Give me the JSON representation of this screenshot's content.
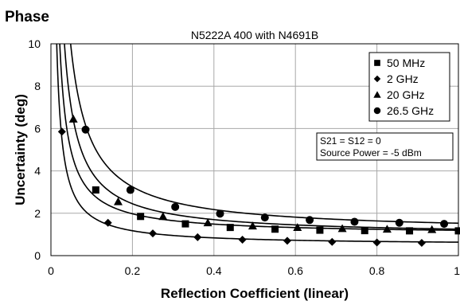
{
  "chart_data": {
    "type": "scatter",
    "heading": "Phase",
    "title": "N5222A 400 with N4691B",
    "xlabel": "Reflection Coefficient (linear)",
    "ylabel": "Uncertainty (deg)",
    "xlim": [
      0,
      1
    ],
    "ylim": [
      0,
      10
    ],
    "xticks": [
      0,
      0.2,
      0.4,
      0.6,
      0.8,
      1
    ],
    "xtick_labels": [
      "0",
      "0.2",
      "0.4",
      "0.6",
      "0.8",
      "1"
    ],
    "yticks": [
      0,
      2,
      4,
      6,
      8,
      10
    ],
    "ytick_labels": [
      "0",
      "2",
      "4",
      "6",
      "8",
      "10"
    ],
    "grid": true,
    "legend_position": "top-right",
    "annotation": [
      "S21 = S12 = 0",
      "Source Power = -5 dBm"
    ],
    "series": [
      {
        "name": "50 MHz",
        "marker": "square",
        "x": [
          0.11,
          0.22,
          0.33,
          0.44,
          0.55,
          0.66,
          0.77,
          0.88,
          1.0
        ],
        "y": [
          3.1,
          1.85,
          1.5,
          1.33,
          1.25,
          1.2,
          1.18,
          1.17,
          1.17
        ],
        "curve_a": 0.195,
        "curve_b": 1.0
      },
      {
        "name": "2 GHz",
        "marker": "diamond",
        "x": [
          0.027,
          0.14,
          0.25,
          0.36,
          0.47,
          0.58,
          0.69,
          0.8,
          0.91
        ],
        "y": [
          5.85,
          1.55,
          1.05,
          0.87,
          0.75,
          0.7,
          0.65,
          0.62,
          0.6
        ],
        "curve_a": 0.135,
        "curve_b": 0.5
      },
      {
        "name": "20 GHz",
        "marker": "triangle",
        "x": [
          0.055,
          0.165,
          0.275,
          0.385,
          0.495,
          0.605,
          0.715,
          0.825,
          0.935
        ],
        "y": [
          6.45,
          2.55,
          1.85,
          1.55,
          1.4,
          1.33,
          1.28,
          1.25,
          1.23
        ],
        "curve_a": 0.3,
        "curve_b": 0.95
      },
      {
        "name": "26.5 GHz",
        "marker": "circle",
        "x": [
          0.085,
          0.195,
          0.305,
          0.415,
          0.525,
          0.635,
          0.745,
          0.855,
          0.965
        ],
        "y": [
          5.95,
          3.1,
          2.3,
          1.98,
          1.8,
          1.68,
          1.6,
          1.55,
          1.5
        ],
        "curve_a": 0.43,
        "curve_b": 1.1
      }
    ]
  }
}
